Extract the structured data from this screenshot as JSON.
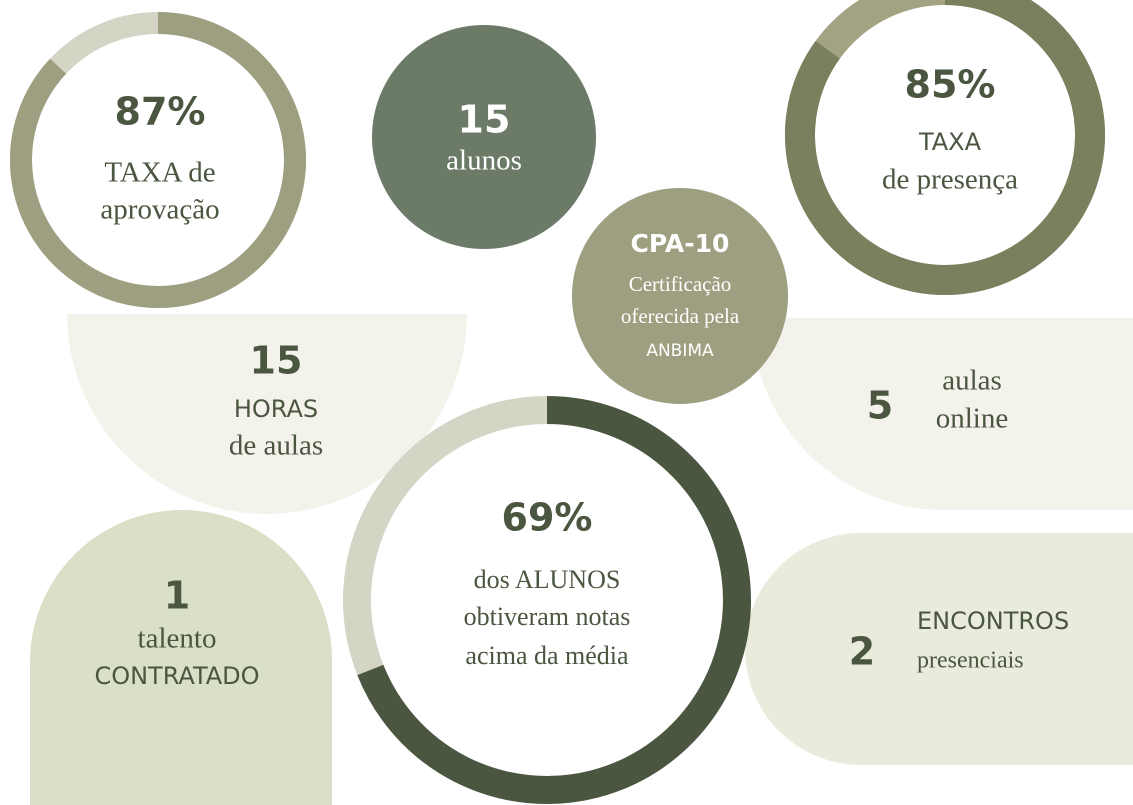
{
  "approval": {
    "value": 87,
    "value_label": "87%",
    "line1": "TAXA de",
    "line2": "aprovação"
  },
  "students": {
    "number": 15,
    "label": "alunos"
  },
  "attendance": {
    "value": 85,
    "value_label": "85%",
    "line1": "TAXA",
    "line2": "de presença"
  },
  "certification": {
    "title": "CPA-10",
    "line1": "Certificação",
    "line2": "oferecida pela",
    "line3": "ANBIMA"
  },
  "hours": {
    "number": 15,
    "line1": "HORAS",
    "line2": "de aulas"
  },
  "online": {
    "number": 5,
    "line1": "aulas",
    "line2": "online"
  },
  "above_average": {
    "value": 69,
    "value_label": "69%",
    "line1": "dos ALUNOS",
    "line2": "obtiveram notas",
    "line3": "acima da média"
  },
  "hired": {
    "number": 1,
    "line1": "talento",
    "line2": "CONTRATADO"
  },
  "meetings": {
    "number": 2,
    "line1": "ENCONTROS",
    "line2": "presenciais"
  }
}
